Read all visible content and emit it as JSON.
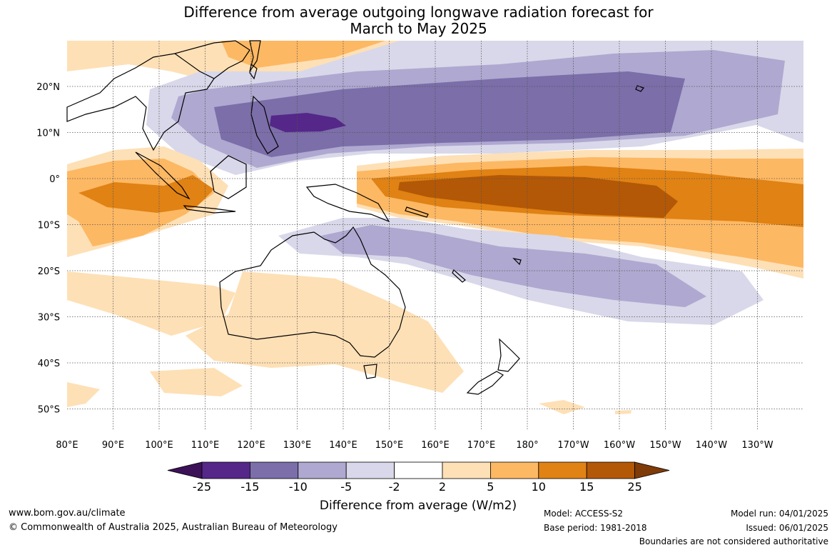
{
  "title_line1": "Difference from average outgoing longwave radiation forecast for",
  "title_line2": "March to May 2025",
  "map": {
    "lon_labels": [
      "80°E",
      "90°E",
      "100°E",
      "110°E",
      "120°E",
      "130°E",
      "140°E",
      "150°E",
      "160°E",
      "170°E",
      "180°",
      "170°W",
      "160°W",
      "150°W",
      "140°W",
      "130°W"
    ],
    "lat_labels": [
      "20°N",
      "10°N",
      "0°",
      "10°S",
      "20°S",
      "30°S",
      "40°S",
      "50°S"
    ]
  },
  "colorbar": {
    "title": "Difference from average (W/m2)",
    "ticks": [
      "-25",
      "-15",
      "-10",
      "-5",
      "-2",
      "2",
      "5",
      "10",
      "15",
      "25"
    ],
    "colors": [
      "#3d1158",
      "#542788",
      "#7b6ea9",
      "#afa8d0",
      "#d8d8ea",
      "#ffffff",
      "#fee0b6",
      "#fdb863",
      "#e08214",
      "#b35806",
      "#7f3b08"
    ]
  },
  "footer": {
    "website": "www.bom.gov.au/climate",
    "copyright": "© Commonwealth of Australia 2025, Australian Bureau of Meteorology",
    "model": "Model: ACCESS-S2",
    "base_period": "Base period: 1981-2018",
    "model_run": "Model run: 04/01/2025",
    "issued": "Issued: 06/01/2025",
    "disclaimer": "Boundaries are not considered authoritative"
  }
}
